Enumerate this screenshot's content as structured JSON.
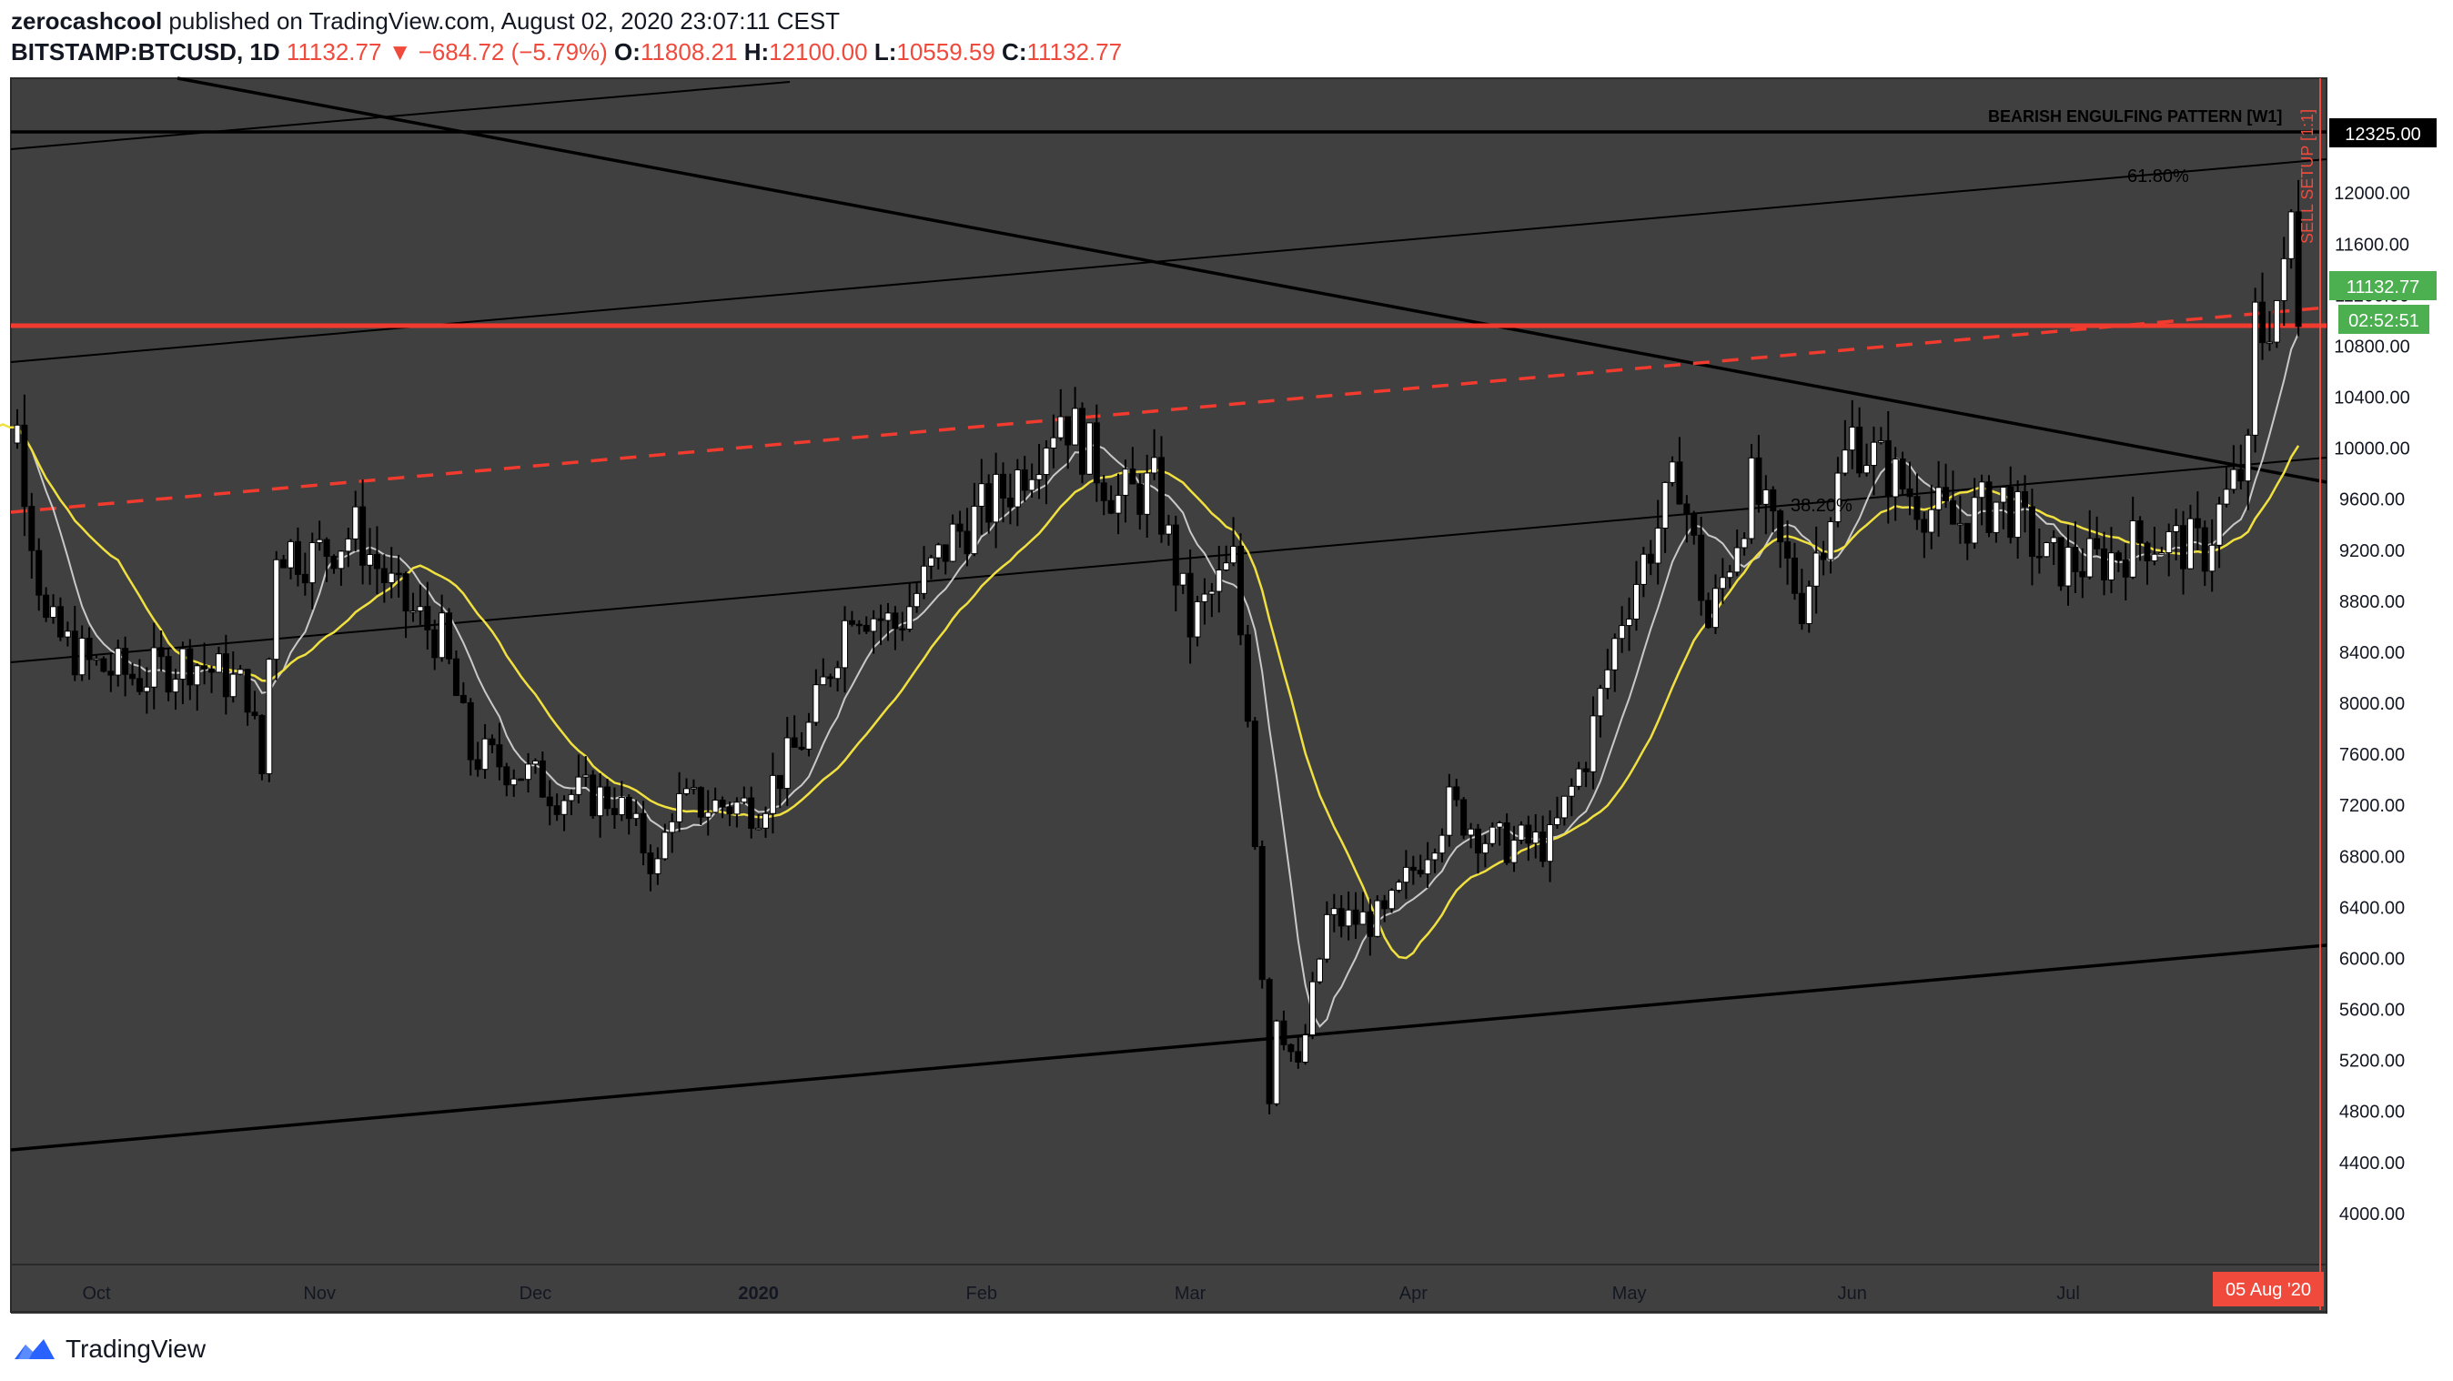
{
  "header": {
    "author": "zerocashcool",
    "published": "published on TradingView.com, August 02, 2020 23:07:11 CEST",
    "symbol": "BITSTAMP:BTCUSD, 1D",
    "last": "11132.77",
    "down_arrow": "▼",
    "change": "−684.72 (−5.79%)",
    "o_label": "O:",
    "o_value": "11808.21",
    "h_label": "H:",
    "h_value": "12100.00",
    "l_label": "L:",
    "l_value": "10559.59",
    "c_label": "C:",
    "c_value": "11132.77"
  },
  "footer": {
    "brand": "TradingView",
    "logo_icon": "tradingview-logo-icon"
  },
  "colors": {
    "background": "#404040",
    "candle": "#000000",
    "sma_fast": "#c9c9c9",
    "sma_slow": "#f0e040",
    "resistance": "#f23b2f",
    "price_tag": "#4caf50",
    "date_tag": "#ef4a3c"
  },
  "chart_data": {
    "type": "candlestick",
    "x_tick_labels": [
      "Oct",
      "Nov",
      "Dec",
      "2020",
      "Feb",
      "Mar",
      "Apr",
      "May",
      "Jun",
      "Jul"
    ],
    "y_tick_labels": [
      "12000.00",
      "11600.00",
      "11200.00",
      "10800.00",
      "10400.00",
      "10000.00",
      "9600.00",
      "9200.00",
      "8800.00",
      "8400.00",
      "8000.00",
      "7600.00",
      "7200.00",
      "6800.00",
      "6400.00",
      "6000.00",
      "5600.00",
      "5200.00",
      "4800.00",
      "4400.00",
      "4000.00"
    ],
    "ylim": [
      3600,
      12900
    ],
    "price_levels": {
      "horizontal_line": 12325.0,
      "current_price": 11132.77,
      "countdown": "02:52:51",
      "red_horizontal": 10800
    },
    "tags": {
      "level_tag": "12325.00",
      "price_tag": "11132.77",
      "countdown_tag": "02:52:51",
      "date_tag": "05 Aug '20"
    },
    "annotations": {
      "pattern": "BEARISH ENGULFING PATTERN [W1]",
      "fib_618": "61.80%",
      "fib_382": "38.20%",
      "vertical_label": "SELL SETUP [1:1]"
    },
    "x_anchor_months": [
      {
        "label": "Oct",
        "date": "2019-10-01"
      },
      {
        "label": "Nov",
        "date": "2019-11-01"
      },
      {
        "label": "Dec",
        "date": "2019-12-01"
      },
      {
        "label": "2020",
        "date": "2020-01-01"
      },
      {
        "label": "Feb",
        "date": "2020-02-01"
      },
      {
        "label": "Mar",
        "date": "2020-03-01"
      },
      {
        "label": "Apr",
        "date": "2020-04-01"
      },
      {
        "label": "May",
        "date": "2020-05-01"
      },
      {
        "label": "Jun",
        "date": "2020-06-01"
      },
      {
        "label": "Jul",
        "date": "2020-07-01"
      }
    ],
    "close_path": [
      [
        "2019-09-14",
        10300
      ],
      [
        "2019-09-20",
        10150
      ],
      [
        "2019-09-24",
        8600
      ],
      [
        "2019-09-30",
        8300
      ],
      [
        "2019-10-07",
        8200
      ],
      [
        "2019-10-14",
        8350
      ],
      [
        "2019-10-22",
        8100
      ],
      [
        "2019-10-24",
        7450
      ],
      [
        "2019-10-26",
        9250
      ],
      [
        "2019-10-31",
        9150
      ],
      [
        "2019-11-06",
        9350
      ],
      [
        "2019-11-12",
        8800
      ],
      [
        "2019-11-18",
        8500
      ],
      [
        "2019-11-22",
        7600
      ],
      [
        "2019-11-28",
        7500
      ],
      [
        "2019-12-04",
        7300
      ],
      [
        "2019-12-12",
        7250
      ],
      [
        "2019-12-18",
        6700
      ],
      [
        "2019-12-20",
        7200
      ],
      [
        "2020-01-01",
        7200
      ],
      [
        "2020-01-08",
        7800
      ],
      [
        "2020-01-14",
        8800
      ],
      [
        "2020-01-20",
        8600
      ],
      [
        "2020-01-28",
        9300
      ],
      [
        "2020-02-05",
        9700
      ],
      [
        "2020-02-12",
        10300
      ],
      [
        "2020-02-20",
        9600
      ],
      [
        "2020-02-25",
        9700
      ],
      [
        "2020-03-01",
        8600
      ],
      [
        "2020-03-07",
        9100
      ],
      [
        "2020-03-09",
        8000
      ],
      [
        "2020-03-12",
        4900
      ],
      [
        "2020-03-13",
        5600
      ],
      [
        "2020-03-16",
        5100
      ],
      [
        "2020-03-20",
        6300
      ],
      [
        "2020-03-28",
        6300
      ],
      [
        "2020-04-06",
        7200
      ],
      [
        "2020-04-12",
        6900
      ],
      [
        "2020-04-20",
        6900
      ],
      [
        "2020-04-25",
        7600
      ],
      [
        "2020-04-30",
        8700
      ],
      [
        "2020-05-08",
        9800
      ],
      [
        "2020-05-12",
        8600
      ],
      [
        "2020-05-18",
        9700
      ],
      [
        "2020-05-25",
        8800
      ],
      [
        "2020-06-01",
        10100
      ],
      [
        "2020-06-08",
        9700
      ],
      [
        "2020-06-15",
        9400
      ],
      [
        "2020-06-22",
        9600
      ],
      [
        "2020-06-28",
        9100
      ],
      [
        "2020-07-05",
        9100
      ],
      [
        "2020-07-12",
        9300
      ],
      [
        "2020-07-20",
        9200
      ],
      [
        "2020-07-22",
        9500
      ],
      [
        "2020-07-26",
        9900
      ],
      [
        "2020-07-27",
        11000
      ],
      [
        "2020-07-28",
        10900
      ],
      [
        "2020-07-31",
        11300
      ],
      [
        "2020-08-01",
        11800
      ],
      [
        "2020-08-02",
        11132
      ]
    ]
  }
}
